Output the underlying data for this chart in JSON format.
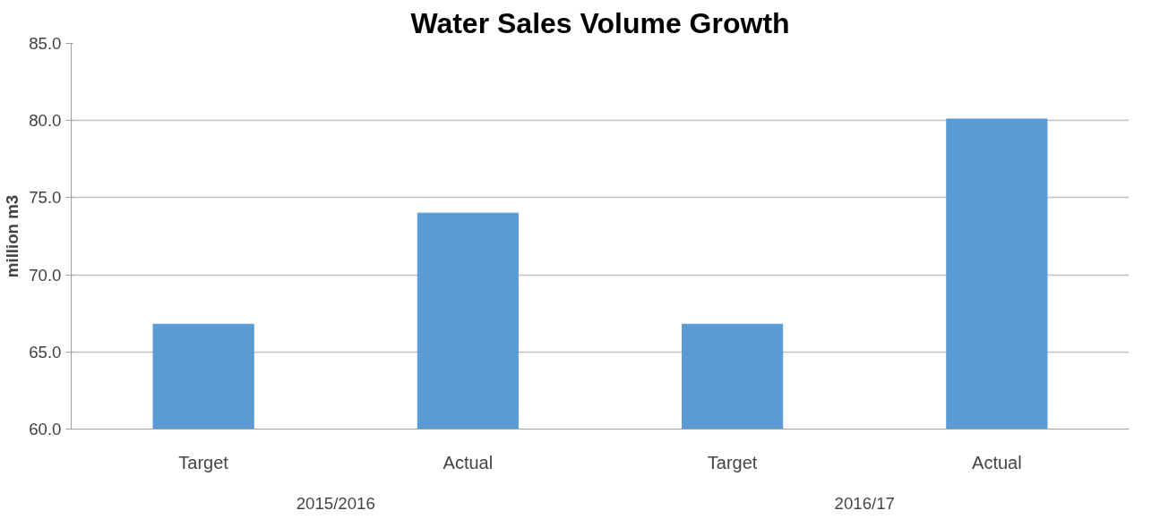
{
  "chart_data": {
    "type": "bar",
    "title": "Water Sales Volume Growth",
    "ylabel": "million m3",
    "categories": [
      "Target",
      "Actual",
      "Target",
      "Actual"
    ],
    "values": [
      66.8,
      74.0,
      66.8,
      80.1
    ],
    "color": "#5b9bd5",
    "ylim": [
      60,
      85
    ],
    "yticks": [
      {
        "value": 60,
        "label": "60.0"
      },
      {
        "value": 65,
        "label": "65.0"
      },
      {
        "value": 70,
        "label": "70.0"
      },
      {
        "value": 75,
        "label": "75.0"
      },
      {
        "value": 80,
        "label": "80.0"
      },
      {
        "value": 85,
        "label": "85.0"
      }
    ],
    "grid": "y",
    "annotations": [
      "2015/2016",
      "2016/17"
    ]
  }
}
